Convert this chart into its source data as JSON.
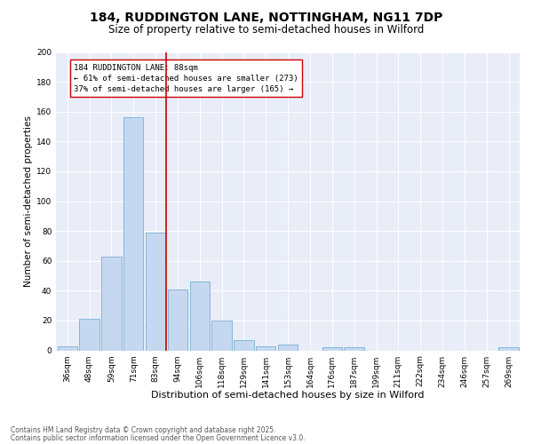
{
  "title1": "184, RUDDINGTON LANE, NOTTINGHAM, NG11 7DP",
  "title2": "Size of property relative to semi-detached houses in Wilford",
  "xlabel": "Distribution of semi-detached houses by size in Wilford",
  "ylabel": "Number of semi-detached properties",
  "categories": [
    "36sqm",
    "48sqm",
    "59sqm",
    "71sqm",
    "83sqm",
    "94sqm",
    "106sqm",
    "118sqm",
    "129sqm",
    "141sqm",
    "153sqm",
    "164sqm",
    "176sqm",
    "187sqm",
    "199sqm",
    "211sqm",
    "222sqm",
    "234sqm",
    "246sqm",
    "257sqm",
    "269sqm"
  ],
  "values": [
    3,
    21,
    63,
    156,
    79,
    41,
    46,
    20,
    7,
    3,
    4,
    0,
    2,
    2,
    0,
    0,
    0,
    0,
    0,
    0,
    2
  ],
  "bar_color": "#c5d8f0",
  "bar_edge_color": "#7bafd4",
  "vline_x": 4.5,
  "vline_color": "#cc0000",
  "annotation_text": "184 RUDDINGTON LANE: 88sqm\n← 61% of semi-detached houses are smaller (273)\n37% of semi-detached houses are larger (165) →",
  "annotation_box_color": "#ffffff",
  "annotation_box_edge": "#cc0000",
  "ylim": [
    0,
    200
  ],
  "yticks": [
    0,
    20,
    40,
    60,
    80,
    100,
    120,
    140,
    160,
    180,
    200
  ],
  "background_color": "#e8edf8",
  "footer_line1": "Contains HM Land Registry data © Crown copyright and database right 2025.",
  "footer_line2": "Contains public sector information licensed under the Open Government Licence v3.0.",
  "title1_fontsize": 10,
  "title2_fontsize": 8.5,
  "xlabel_fontsize": 8,
  "ylabel_fontsize": 7.5,
  "tick_fontsize": 6.5,
  "annotation_fontsize": 6.5,
  "footer_fontsize": 5.5
}
